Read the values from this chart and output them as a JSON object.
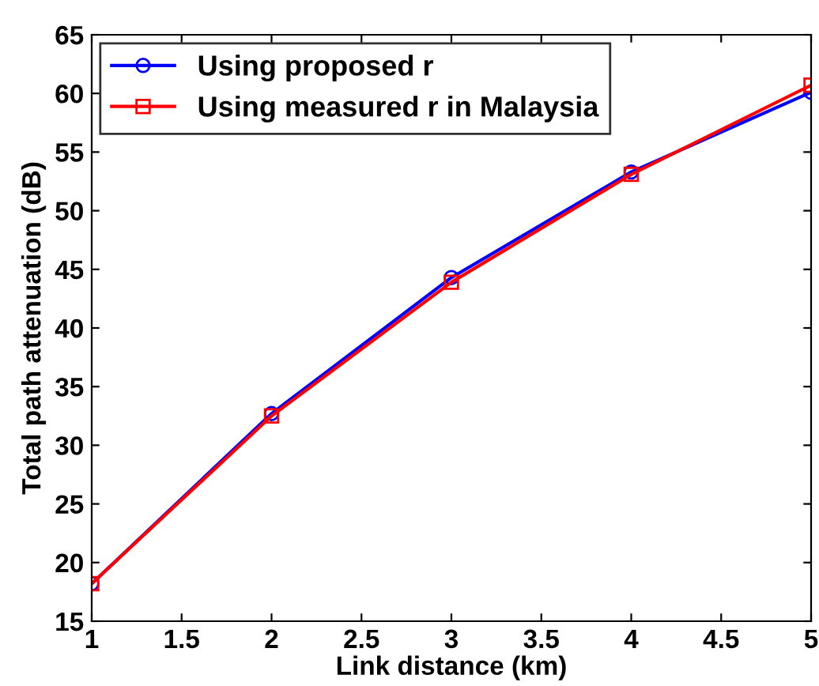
{
  "chart_data": {
    "type": "line",
    "xlabel": "Link distance (km)",
    "ylabel": "Total path attenuation (dB)",
    "x": [
      1,
      2,
      3,
      4,
      5
    ],
    "series": [
      {
        "name": "Using proposed r",
        "color": "#0000ff",
        "values": [
          18.2,
          32.7,
          44.3,
          53.3,
          60.1
        ],
        "marker": "circle"
      },
      {
        "name": "Using measured r in Malaysia",
        "color": "#ff0000",
        "values": [
          18.2,
          32.5,
          43.9,
          53.1,
          60.7
        ],
        "marker": "square"
      }
    ],
    "xlim": [
      1,
      5
    ],
    "xticks": [
      1,
      1.5,
      2,
      2.5,
      3,
      3.5,
      4,
      4.5,
      5
    ],
    "ylim": [
      15,
      65
    ],
    "yticks": [
      15,
      20,
      25,
      30,
      35,
      40,
      45,
      50,
      55,
      60,
      65
    ],
    "grid": false,
    "legend": "top left",
    "line_style": "solid"
  }
}
